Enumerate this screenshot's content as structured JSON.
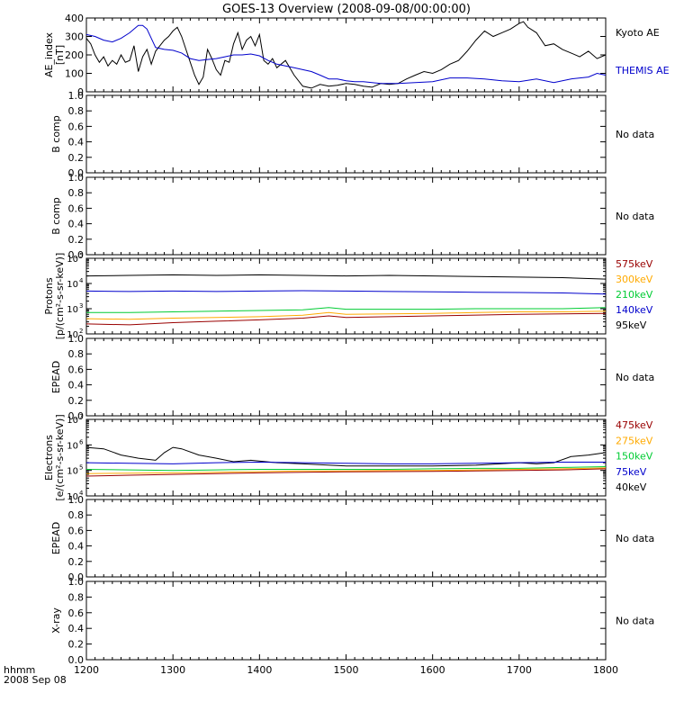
{
  "title": "GOES-13 Overview (2008-09-08/00:00:00)",
  "time_axis": {
    "ticks": [
      "1200",
      "1300",
      "1400",
      "1500",
      "1600",
      "1700",
      "1800"
    ],
    "range": [
      1200,
      1800
    ],
    "label_line1": "hhmm",
    "label_line2": "2008 Sep 08"
  },
  "chart_data": [
    {
      "type": "line",
      "panel": "ae",
      "ylabel": [
        "AE_index",
        "[nT]"
      ],
      "yticks": [
        "0",
        "100",
        "200",
        "300",
        "400"
      ],
      "ylim": [
        0,
        400
      ],
      "series": [
        {
          "name": "Kyoto AE",
          "color": "#000000",
          "x": [
            1200,
            1205,
            1210,
            1215,
            1220,
            1225,
            1230,
            1235,
            1240,
            1245,
            1250,
            1255,
            1260,
            1265,
            1270,
            1275,
            1280,
            1285,
            1290,
            1295,
            1300,
            1305,
            1310,
            1315,
            1320,
            1325,
            1330,
            1335,
            1340,
            1345,
            1350,
            1355,
            1360,
            1365,
            1370,
            1375,
            1380,
            1385,
            1390,
            1395,
            1400,
            1405,
            1410,
            1415,
            1420,
            1430,
            1440,
            1450,
            1460,
            1470,
            1480,
            1490,
            1500,
            1510,
            1520,
            1530,
            1540,
            1550,
            1560,
            1570,
            1580,
            1590,
            1600,
            1610,
            1620,
            1630,
            1640,
            1650,
            1660,
            1670,
            1680,
            1690,
            1700,
            1705,
            1710,
            1720,
            1730,
            1740,
            1750,
            1760,
            1770,
            1780,
            1790,
            1800
          ],
          "values": [
            290,
            260,
            200,
            160,
            190,
            140,
            170,
            150,
            200,
            160,
            170,
            250,
            110,
            190,
            230,
            150,
            220,
            250,
            280,
            300,
            330,
            350,
            300,
            230,
            160,
            90,
            40,
            80,
            230,
            180,
            120,
            90,
            170,
            160,
            260,
            320,
            230,
            280,
            300,
            250,
            310,
            170,
            150,
            180,
            130,
            170,
            90,
            30,
            20,
            40,
            30,
            35,
            45,
            40,
            30,
            25,
            45,
            40,
            45,
            70,
            90,
            110,
            100,
            120,
            150,
            170,
            220,
            280,
            330,
            300,
            320,
            340,
            370,
            380,
            350,
            320,
            250,
            260,
            230,
            210,
            190,
            220,
            180,
            200
          ]
        },
        {
          "name": "THEMIS AE",
          "color": "#0000cc",
          "x": [
            1200,
            1210,
            1220,
            1230,
            1240,
            1250,
            1255,
            1260,
            1265,
            1270,
            1280,
            1290,
            1300,
            1310,
            1320,
            1330,
            1340,
            1350,
            1360,
            1370,
            1380,
            1390,
            1400,
            1410,
            1420,
            1430,
            1440,
            1450,
            1460,
            1470,
            1480,
            1490,
            1500,
            1510,
            1520,
            1540,
            1560,
            1580,
            1600,
            1620,
            1640,
            1660,
            1680,
            1700,
            1720,
            1740,
            1760,
            1780,
            1790,
            1800
          ],
          "values": [
            310,
            300,
            280,
            270,
            290,
            320,
            340,
            360,
            360,
            340,
            240,
            230,
            225,
            210,
            180,
            170,
            175,
            180,
            190,
            200,
            200,
            205,
            195,
            170,
            150,
            140,
            130,
            120,
            110,
            90,
            70,
            70,
            60,
            55,
            55,
            45,
            45,
            50,
            55,
            75,
            75,
            70,
            60,
            55,
            70,
            50,
            70,
            80,
            100,
            90
          ]
        }
      ]
    },
    {
      "type": "line",
      "panel": "bcomp1",
      "ylabel": [
        "B comp"
      ],
      "yticks": [
        "0.0",
        "0.2",
        "0.4",
        "0.6",
        "0.8",
        "1.0"
      ],
      "ylim": [
        0,
        1
      ],
      "note": "No data",
      "series": []
    },
    {
      "type": "line",
      "panel": "bcomp2",
      "ylabel": [
        "B comp"
      ],
      "yticks": [
        "0.0",
        "0.2",
        "0.4",
        "0.6",
        "0.8",
        "1.0"
      ],
      "ylim": [
        0,
        1
      ],
      "note": "No data",
      "series": []
    },
    {
      "type": "line",
      "panel": "protons",
      "ylabel": [
        "Protons",
        "[p/(cm²-s-sr-keV)]"
      ],
      "yscale": "log",
      "ylim": [
        100,
        100000
      ],
      "ytick_exponents": [
        "2",
        "3",
        "4",
        "5"
      ],
      "series": [
        {
          "name": "95keV",
          "color": "#000000",
          "x": [
            1200,
            1250,
            1300,
            1350,
            1400,
            1450,
            1500,
            1550,
            1600,
            1650,
            1700,
            1750,
            1800
          ],
          "values": [
            20000,
            21000,
            22000,
            21000,
            22000,
            21000,
            20000,
            21000,
            20000,
            19000,
            18000,
            17000,
            15000
          ]
        },
        {
          "name": "140keV",
          "color": "#0000cc",
          "x": [
            1200,
            1250,
            1300,
            1350,
            1400,
            1450,
            1500,
            1550,
            1600,
            1650,
            1700,
            1750,
            1800
          ],
          "values": [
            5000,
            4800,
            5000,
            4800,
            5000,
            5200,
            5000,
            4800,
            4700,
            4500,
            4400,
            4200,
            3800
          ]
        },
        {
          "name": "210keV",
          "color": "#00cc33",
          "x": [
            1200,
            1250,
            1300,
            1350,
            1400,
            1450,
            1480,
            1500,
            1550,
            1600,
            1650,
            1700,
            1750,
            1800
          ],
          "values": [
            700,
            700,
            750,
            800,
            850,
            900,
            1100,
            950,
            950,
            950,
            1000,
            1000,
            1000,
            1100
          ]
        },
        {
          "name": "300keV",
          "color": "#ffaa00",
          "x": [
            1200,
            1250,
            1300,
            1350,
            1400,
            1450,
            1480,
            1500,
            1550,
            1600,
            1650,
            1700,
            1750,
            1800
          ],
          "values": [
            400,
            380,
            420,
            450,
            480,
            550,
            700,
            600,
            620,
            650,
            700,
            750,
            750,
            800
          ]
        },
        {
          "name": "575keV",
          "color": "#990000",
          "x": [
            1200,
            1250,
            1300,
            1350,
            1400,
            1450,
            1480,
            1500,
            1550,
            1600,
            1650,
            1700,
            1750,
            1800
          ],
          "values": [
            250,
            230,
            280,
            320,
            360,
            420,
            520,
            450,
            480,
            520,
            560,
            600,
            620,
            650
          ]
        }
      ]
    },
    {
      "type": "line",
      "panel": "epead1",
      "ylabel": [
        "EPEAD"
      ],
      "yticks": [
        "0.0",
        "0.2",
        "0.4",
        "0.6",
        "0.8",
        "1.0"
      ],
      "ylim": [
        0,
        1
      ],
      "note": "No data",
      "series": []
    },
    {
      "type": "line",
      "panel": "electrons",
      "ylabel": [
        "Electrons",
        "[e/(cm²-s-sr-keV)]"
      ],
      "yscale": "log",
      "ylim": [
        10000,
        10000000
      ],
      "ytick_exponents": [
        "4",
        "5",
        "6",
        "7"
      ],
      "series": [
        {
          "name": "40keV",
          "color": "#000000",
          "x": [
            1200,
            1220,
            1240,
            1260,
            1280,
            1290,
            1300,
            1310,
            1330,
            1350,
            1370,
            1390,
            1420,
            1450,
            1500,
            1550,
            1600,
            1650,
            1700,
            1720,
            1740,
            1760,
            1780,
            1800
          ],
          "values": [
            800000,
            700000,
            400000,
            300000,
            250000,
            500000,
            800000,
            700000,
            400000,
            300000,
            220000,
            250000,
            200000,
            180000,
            150000,
            150000,
            150000,
            160000,
            200000,
            180000,
            200000,
            350000,
            400000,
            500000
          ]
        },
        {
          "name": "75keV",
          "color": "#0000cc",
          "x": [
            1200,
            1250,
            1300,
            1350,
            1400,
            1450,
            1500,
            1550,
            1600,
            1650,
            1700,
            1750,
            1800
          ],
          "values": [
            200000,
            190000,
            180000,
            200000,
            210000,
            200000,
            190000,
            180000,
            180000,
            190000,
            200000,
            210000,
            210000
          ]
        },
        {
          "name": "150keV",
          "color": "#00cc33",
          "x": [
            1200,
            1250,
            1300,
            1350,
            1400,
            1450,
            1500,
            1550,
            1600,
            1650,
            1700,
            1750,
            1800
          ],
          "values": [
            110000,
            105000,
            100000,
            105000,
            110000,
            110000,
            110000,
            110000,
            115000,
            120000,
            120000,
            130000,
            140000
          ]
        },
        {
          "name": "275keV",
          "color": "#ffaa00",
          "x": [
            1200,
            1250,
            1300,
            1350,
            1400,
            1450,
            1500,
            1550,
            1600,
            1650,
            1700,
            1750,
            1800
          ],
          "values": [
            75000,
            78000,
            80000,
            85000,
            90000,
            95000,
            95000,
            100000,
            100000,
            105000,
            110000,
            115000,
            125000
          ]
        },
        {
          "name": "475keV",
          "color": "#990000",
          "x": [
            1200,
            1250,
            1300,
            1350,
            1400,
            1450,
            1500,
            1550,
            1600,
            1650,
            1700,
            1750,
            1800
          ],
          "values": [
            60000,
            65000,
            70000,
            75000,
            80000,
            85000,
            88000,
            90000,
            92000,
            95000,
            100000,
            105000,
            115000
          ]
        }
      ]
    },
    {
      "type": "line",
      "panel": "epead2",
      "ylabel": [
        "EPEAD"
      ],
      "yticks": [
        "0.0",
        "0.2",
        "0.4",
        "0.6",
        "0.8",
        "1.0"
      ],
      "ylim": [
        0,
        1
      ],
      "note": "No data",
      "series": []
    },
    {
      "type": "line",
      "panel": "xray",
      "ylabel": [
        "X-ray"
      ],
      "yticks": [
        "0.0",
        "0.2",
        "0.4",
        "0.6",
        "0.8",
        "1.0"
      ],
      "ylim": [
        0,
        1
      ],
      "note": "No data",
      "series": []
    }
  ]
}
